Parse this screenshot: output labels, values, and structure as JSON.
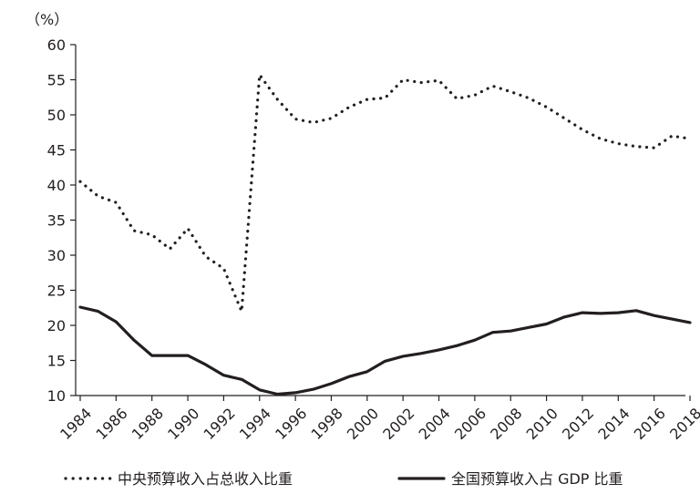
{
  "chart_data": {
    "type": "line",
    "unit_label": "（%）",
    "x": [
      1984,
      1985,
      1986,
      1987,
      1988,
      1989,
      1990,
      1991,
      1992,
      1993,
      1994,
      1995,
      1996,
      1997,
      1998,
      1999,
      2000,
      2001,
      2002,
      2003,
      2004,
      2005,
      2006,
      2007,
      2008,
      2009,
      2010,
      2011,
      2012,
      2013,
      2014,
      2015,
      2016,
      2017,
      2018
    ],
    "x_tick_labels": [
      "1984",
      "1986",
      "1988",
      "1990",
      "1992",
      "1994",
      "1996",
      "1998",
      "2000",
      "2002",
      "2004",
      "2006",
      "2008",
      "2010",
      "2012",
      "2014",
      "2016",
      "2018"
    ],
    "y_tick_labels": [
      "10",
      "15",
      "20",
      "25",
      "30",
      "35",
      "40",
      "45",
      "50",
      "55",
      "60"
    ],
    "ylim": [
      10,
      60
    ],
    "xlim": [
      1984,
      2018
    ],
    "grid": false,
    "legend_position": "bottom",
    "series": [
      {
        "name": "中央预算收入占总收入比重",
        "style": "dotted",
        "color": "#231f20",
        "values": [
          40.5,
          38.4,
          37.5,
          33.5,
          32.9,
          30.9,
          33.8,
          29.8,
          28.1,
          22.0,
          55.7,
          52.2,
          49.4,
          48.9,
          49.5,
          51.1,
          52.2,
          52.4,
          55.0,
          54.6,
          54.9,
          52.3,
          52.8,
          54.1,
          53.3,
          52.4,
          51.1,
          49.5,
          47.9,
          46.6,
          45.9,
          45.5,
          45.3,
          47.0,
          46.6
        ]
      },
      {
        "name": "全国预算收入占 GDP 比重",
        "style": "solid",
        "color": "#231f20",
        "values": [
          22.6,
          22.0,
          20.5,
          17.9,
          15.7,
          15.7,
          15.7,
          14.4,
          12.9,
          12.3,
          10.8,
          10.2,
          10.4,
          10.9,
          11.7,
          12.7,
          13.4,
          14.9,
          15.6,
          16.0,
          16.5,
          17.1,
          17.9,
          19.0,
          19.2,
          19.7,
          20.2,
          21.2,
          21.8,
          21.7,
          21.8,
          22.1,
          21.4,
          20.9,
          20.4
        ]
      }
    ]
  }
}
